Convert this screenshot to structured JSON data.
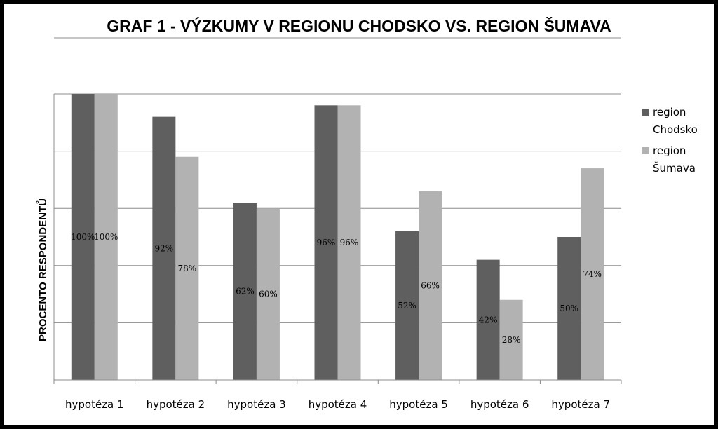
{
  "chart_data": {
    "type": "bar",
    "title": "GRAF 1 - VÝZKUMY V REGIONU CHODSKO VS. REGION ŠUMAVA",
    "xlabel": "",
    "ylabel": "PROCENTO RESPONDENTŮ",
    "ylim": [
      0,
      100
    ],
    "grid": true,
    "legend_position": "right",
    "categories": [
      "hypotéza 1",
      "hypotéza 2",
      "hypotéza 3",
      "hypotéza 4",
      "hypotéza 5",
      "hypotéza 6",
      "hypotéza 7"
    ],
    "series": [
      {
        "name": "region Chodsko",
        "legend_lines": [
          "region",
          "Chodsko"
        ],
        "color": "#5f5f5f",
        "values": [
          100,
          92,
          62,
          96,
          52,
          42,
          50
        ],
        "labels": [
          "100%",
          "92%",
          "62%",
          "96%",
          "52%",
          "42%",
          "50%"
        ]
      },
      {
        "name": "region Šumava",
        "legend_lines": [
          "region",
          "Šumava"
        ],
        "color": "#b2b2b2",
        "values": [
          100,
          78,
          60,
          96,
          66,
          28,
          74
        ],
        "labels": [
          "100%",
          "78%",
          "60%",
          "96%",
          "66%",
          "28%",
          "74%"
        ]
      }
    ]
  }
}
